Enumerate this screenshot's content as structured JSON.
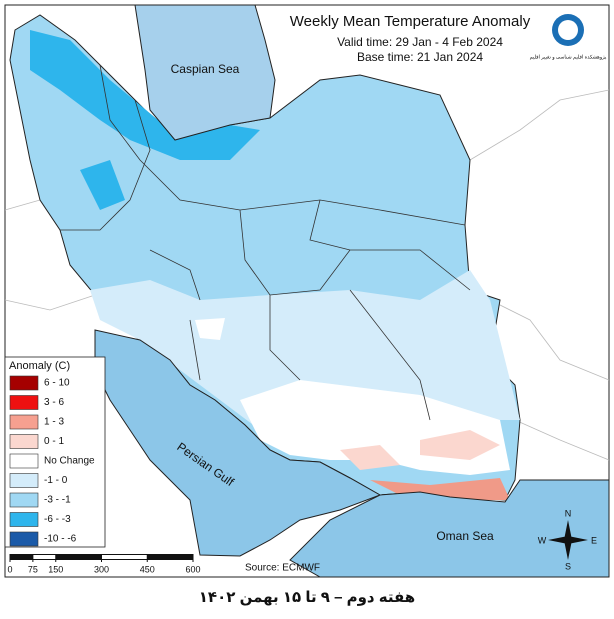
{
  "title": "Weekly Mean Temperature Anomaly",
  "valid_time": "Valid time: 29 Jan - 4 Feb 2024",
  "base_time": "Base time: 21 Jan 2024",
  "logo_text": "پژوهشکده اقلیم شناسی و تغییر اقلیم",
  "seas": {
    "caspian": "Caspian Sea",
    "persian_gulf": "Persian Gulf",
    "oman": "Oman Sea"
  },
  "legend": {
    "title": "Anomaly (C)",
    "items": [
      {
        "label": "6 - 10",
        "color": "#a50000"
      },
      {
        "label": "3 - 6",
        "color": "#ee1111"
      },
      {
        "label": "1 - 3",
        "color": "#f6a090"
      },
      {
        "label": "0 - 1",
        "color": "#fbd7cf"
      },
      {
        "label": "No Change",
        "color": "#ffffff"
      },
      {
        "label": "-1 - 0",
        "color": "#d4ecfa"
      },
      {
        "label": "-3 - -1",
        "color": "#a0d8f3"
      },
      {
        "label": "-6 - -3",
        "color": "#2eb5ec"
      },
      {
        "label": "-10 - -6",
        "color": "#1b5aa8"
      }
    ]
  },
  "scale_bar": {
    "ticks": [
      0,
      75,
      150,
      300,
      450,
      600
    ]
  },
  "source": "Source: ECMWF",
  "compass": {
    "n": "N",
    "s": "S",
    "e": "E",
    "w": "W"
  },
  "footer": "هفته دوم – ۹ تا ۱۵ بهمن ۱۴۰۲"
}
